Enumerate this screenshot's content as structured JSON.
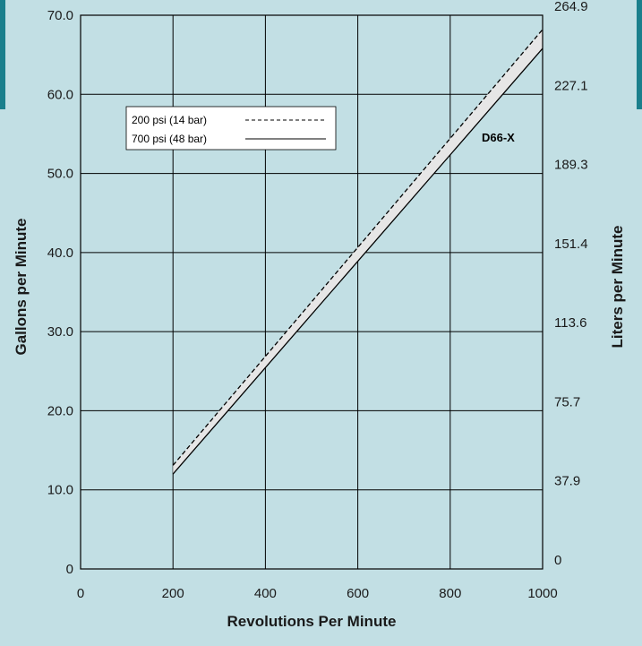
{
  "accent_color": "#1a7f8c",
  "chart_data": {
    "type": "line",
    "xlabel": "Revolutions Per Minute",
    "ylabel": "Gallons per Minute",
    "y2label": "Liters per Minute",
    "x_ticks": [
      "0",
      "200",
      "400",
      "600",
      "800",
      "1000"
    ],
    "y_ticks": [
      "0",
      "10.0",
      "20.0",
      "30.0",
      "40.0",
      "50.0",
      "60.0",
      "70.0"
    ],
    "y2_ticks": [
      "0",
      "37.9",
      "75.7",
      "113.6",
      "151.4",
      "189.3",
      "227.1",
      "264.9"
    ],
    "xlim": [
      0,
      1000
    ],
    "ylim": [
      0,
      70
    ],
    "grid": true,
    "legend_position": "top-left",
    "annotation": "D66-X",
    "series": [
      {
        "name": "200 psi (14 bar)",
        "style": "dashed",
        "x": [
          200,
          1000
        ],
        "y": [
          13.1,
          68.2
        ]
      },
      {
        "name": "700 psi (48 bar)",
        "style": "solid",
        "x": [
          200,
          1000
        ],
        "y": [
          12.0,
          65.8
        ]
      }
    ]
  }
}
